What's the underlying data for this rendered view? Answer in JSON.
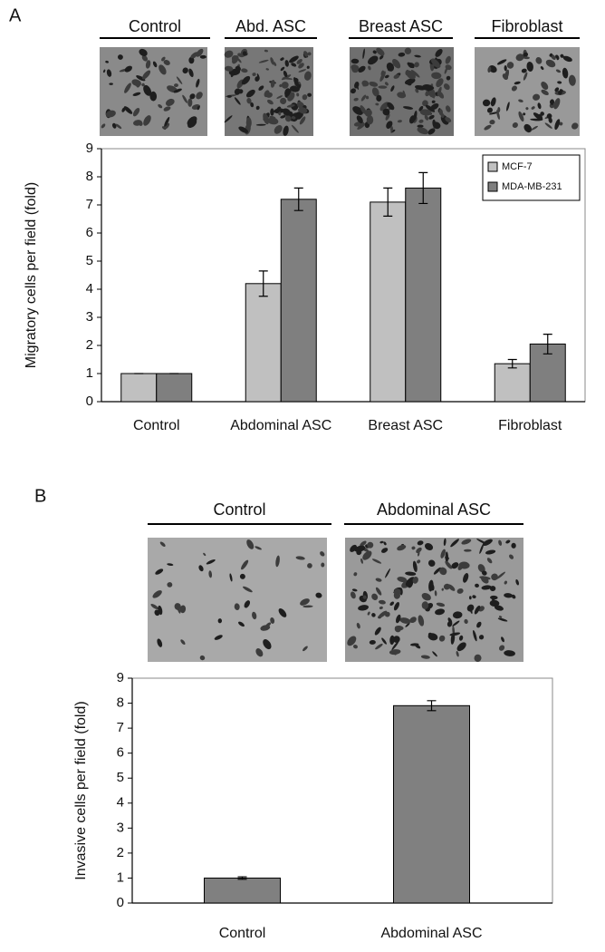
{
  "chart_data": [
    {
      "type": "bar",
      "panel_label": "A",
      "image_labels": [
        "Control",
        "Abd. ASC",
        "Breast ASC",
        "Fibroblast"
      ],
      "y_label": "Migratory cells per field (fold)",
      "categories": [
        "Control",
        "Abdominal ASC",
        "Breast ASC",
        "Fibroblast"
      ],
      "series": [
        {
          "name": "MCF-7",
          "color": "#c0c0c0",
          "values": [
            1,
            4.2,
            7.1,
            1.35
          ],
          "errors": [
            0,
            0.45,
            0.5,
            0.15
          ]
        },
        {
          "name": "MDA-MB-231",
          "color": "#7f7f7f",
          "values": [
            1,
            7.2,
            7.6,
            2.05
          ],
          "errors": [
            0,
            0.4,
            0.55,
            0.35
          ]
        }
      ],
      "ylim": [
        0,
        9
      ],
      "yticks": [
        0,
        1,
        2,
        3,
        4,
        5,
        6,
        7,
        8,
        9
      ],
      "legend": "upper right"
    },
    {
      "type": "bar",
      "panel_label": "B",
      "image_labels": [
        "Control",
        "Abdominal ASC"
      ],
      "y_label": "Invasive cells per field (fold)",
      "categories": [
        "Control",
        "Abdominal ASC"
      ],
      "values": [
        1,
        7.9
      ],
      "errors": [
        0.05,
        0.2
      ],
      "color": "#808080",
      "ylim": [
        0,
        9
      ],
      "yticks": [
        0,
        1,
        2,
        3,
        4,
        5,
        6,
        7,
        8,
        9
      ]
    }
  ]
}
